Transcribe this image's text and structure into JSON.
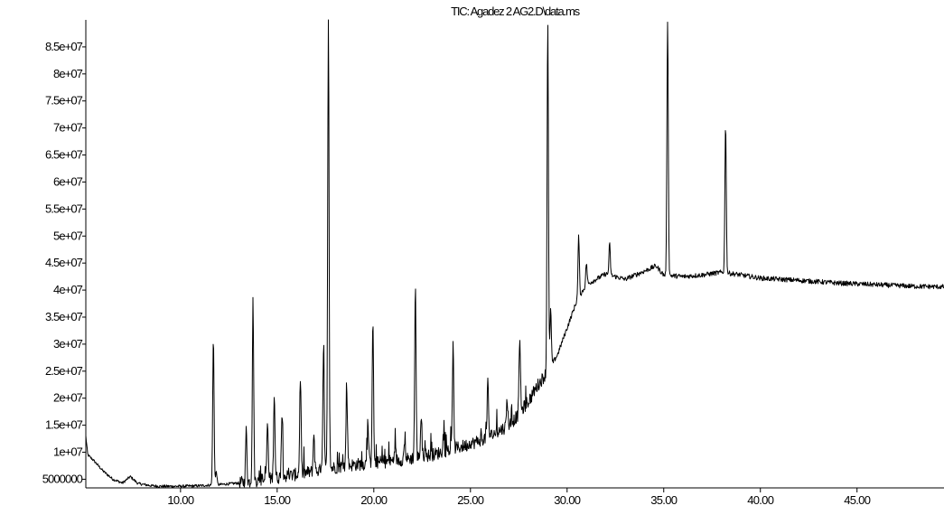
{
  "chart_data": {
    "type": "line",
    "title": "TIC: Agadez 2 AG2.D\\data.ms",
    "xlabel": "",
    "ylabel": "",
    "xlim": [
      5.1,
      49.5
    ],
    "ylim": [
      3400000,
      90000000
    ],
    "x_ticks": [
      10,
      15,
      20,
      25,
      30,
      35,
      40,
      45
    ],
    "x_tick_labels": [
      "10.00",
      "15.00",
      "20.00",
      "25.00",
      "30.00",
      "35.00",
      "40.00",
      "45.00"
    ],
    "y_ticks": [
      5000000,
      10000000,
      15000000,
      20000000,
      25000000,
      30000000,
      35000000,
      40000000,
      45000000,
      50000000,
      55000000,
      60000000,
      65000000,
      70000000,
      75000000,
      80000000,
      85000000
    ],
    "y_tick_labels": [
      "5000000",
      "1e+07",
      "1.5e+07",
      "2e+07",
      "2.5e+07",
      "3e+07",
      "3.5e+07",
      "4e+07",
      "4.5e+07",
      "5e+07",
      "5.5e+07",
      "6e+07",
      "6.5e+07",
      "7e+07",
      "7.5e+07",
      "8e+07",
      "8.5e+07"
    ],
    "grid": false,
    "legend": "none",
    "line_color": "#000000",
    "series": [
      {
        "baseline": [
          [
            5.1,
            13000000
          ],
          [
            5.2,
            9500000
          ],
          [
            5.5,
            8500000
          ],
          [
            6.0,
            6500000
          ],
          [
            6.5,
            5000000
          ],
          [
            7.0,
            4300000
          ],
          [
            7.4,
            5500000
          ],
          [
            7.8,
            4200000
          ],
          [
            8.5,
            3800000
          ],
          [
            9.0,
            3700000
          ],
          [
            10.0,
            3700000
          ],
          [
            11.0,
            3800000
          ],
          [
            12.0,
            4000000
          ],
          [
            13.0,
            4300000
          ],
          [
            14.0,
            4800000
          ],
          [
            15.0,
            5300000
          ],
          [
            16.0,
            5900000
          ],
          [
            17.0,
            6500000
          ],
          [
            18.0,
            7200000
          ],
          [
            19.0,
            7700000
          ],
          [
            20.0,
            8000000
          ],
          [
            21.0,
            8400000
          ],
          [
            22.0,
            8900000
          ],
          [
            23.0,
            9500000
          ],
          [
            24.0,
            10500000
          ],
          [
            25.0,
            11500000
          ],
          [
            26.0,
            13000000
          ],
          [
            27.0,
            15000000
          ],
          [
            27.5,
            17000000
          ],
          [
            28.0,
            19500000
          ],
          [
            28.5,
            22500000
          ],
          [
            29.0,
            25000000
          ],
          [
            29.5,
            28000000
          ],
          [
            30.0,
            33000000
          ],
          [
            30.5,
            38000000
          ],
          [
            31.0,
            41000000
          ],
          [
            31.5,
            42000000
          ],
          [
            32.0,
            43000000
          ],
          [
            32.5,
            42500000
          ],
          [
            33.0,
            42000000
          ],
          [
            34.0,
            43500000
          ],
          [
            34.6,
            44500000
          ],
          [
            35.0,
            42800000
          ],
          [
            36.0,
            42500000
          ],
          [
            37.0,
            42800000
          ],
          [
            38.0,
            43300000
          ],
          [
            39.0,
            42800000
          ],
          [
            40.0,
            42200000
          ],
          [
            42.0,
            41800000
          ],
          [
            44.0,
            41300000
          ],
          [
            46.0,
            41000000
          ],
          [
            48.0,
            40700000
          ],
          [
            49.5,
            40600000
          ]
        ],
        "peaks": [
          [
            11.7,
            31000000
          ],
          [
            11.85,
            6500000
          ],
          [
            13.4,
            14000000
          ],
          [
            13.75,
            38000000
          ],
          [
            14.5,
            15500000
          ],
          [
            14.85,
            21000000
          ],
          [
            15.25,
            17000000
          ],
          [
            16.2,
            24000000
          ],
          [
            16.9,
            13500000
          ],
          [
            17.4,
            28500000
          ],
          [
            17.65,
            90000000
          ],
          [
            18.6,
            22000000
          ],
          [
            19.7,
            14500000
          ],
          [
            19.95,
            34500000
          ],
          [
            21.1,
            11500000
          ],
          [
            21.6,
            12000000
          ],
          [
            22.15,
            40500000
          ],
          [
            22.45,
            16500000
          ],
          [
            23.6,
            13000000
          ],
          [
            24.1,
            29500000
          ],
          [
            25.0,
            12000000
          ],
          [
            25.9,
            23000000
          ],
          [
            26.9,
            20000000
          ],
          [
            27.55,
            31500000
          ],
          [
            28.1,
            20000000
          ],
          [
            29.0,
            90000000
          ],
          [
            29.15,
            36500000
          ],
          [
            30.6,
            50000000
          ],
          [
            31.0,
            45000000
          ],
          [
            32.2,
            48500000
          ],
          [
            35.2,
            90000000
          ],
          [
            38.2,
            71000000
          ]
        ]
      }
    ]
  }
}
